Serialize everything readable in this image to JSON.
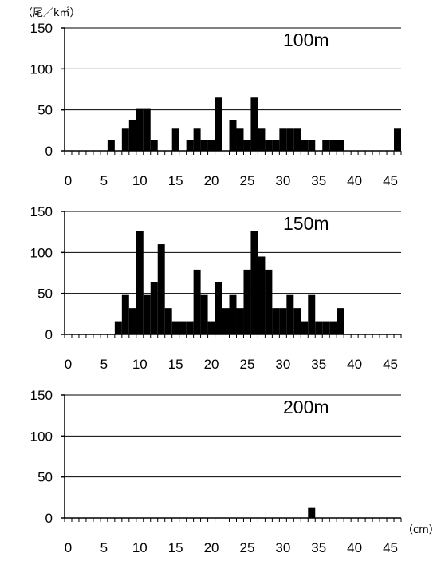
{
  "chart_data": {
    "type": "bar",
    "ylabel": "（尾／k㎡）",
    "xlabel": "（cm）",
    "x_categories": [
      0,
      1,
      2,
      3,
      4,
      5,
      6,
      7,
      8,
      9,
      10,
      11,
      12,
      13,
      14,
      15,
      16,
      17,
      18,
      19,
      20,
      21,
      22,
      23,
      24,
      25,
      26,
      27,
      28,
      29,
      30,
      31,
      32,
      33,
      34,
      35,
      36,
      37,
      38,
      39,
      40,
      41,
      42,
      43,
      44,
      45,
      46
    ],
    "x_tick_labels": [
      "0",
      "5",
      "10",
      "15",
      "20",
      "25",
      "30",
      "35",
      "40",
      "45"
    ],
    "x_tick_values": [
      0,
      5,
      10,
      15,
      20,
      25,
      30,
      35,
      40,
      45
    ],
    "y_tick_labels": [
      "0",
      "50",
      "100",
      "150"
    ],
    "y_tick_values": [
      0,
      50,
      100,
      150
    ],
    "ylim": [
      0,
      150
    ],
    "grid": true,
    "bar_color": "#000000",
    "panels": [
      {
        "label": "100m",
        "values": [
          0,
          0,
          0,
          0,
          0,
          0,
          13,
          0,
          27,
          38,
          52,
          52,
          13,
          0,
          0,
          27,
          0,
          13,
          27,
          13,
          13,
          65,
          0,
          38,
          27,
          13,
          65,
          27,
          13,
          13,
          27,
          27,
          27,
          13,
          13,
          0,
          13,
          13,
          13,
          0,
          0,
          0,
          0,
          0,
          0,
          0,
          27
        ]
      },
      {
        "label": "150m",
        "values": [
          0,
          0,
          0,
          0,
          0,
          0,
          0,
          16,
          48,
          32,
          126,
          48,
          64,
          110,
          32,
          16,
          16,
          16,
          79,
          48,
          16,
          64,
          32,
          48,
          32,
          79,
          126,
          95,
          79,
          32,
          32,
          48,
          32,
          16,
          48,
          16,
          16,
          16,
          32,
          0,
          0,
          0,
          0,
          0,
          0,
          0,
          0
        ]
      },
      {
        "label": "200m",
        "values": [
          0,
          0,
          0,
          0,
          0,
          0,
          0,
          0,
          0,
          0,
          0,
          0,
          0,
          0,
          0,
          0,
          0,
          0,
          0,
          0,
          0,
          0,
          0,
          0,
          0,
          0,
          0,
          0,
          0,
          0,
          0,
          0,
          0,
          0,
          13,
          0,
          0,
          0,
          0,
          0,
          0,
          0,
          0,
          0,
          0,
          0,
          0
        ]
      }
    ]
  }
}
